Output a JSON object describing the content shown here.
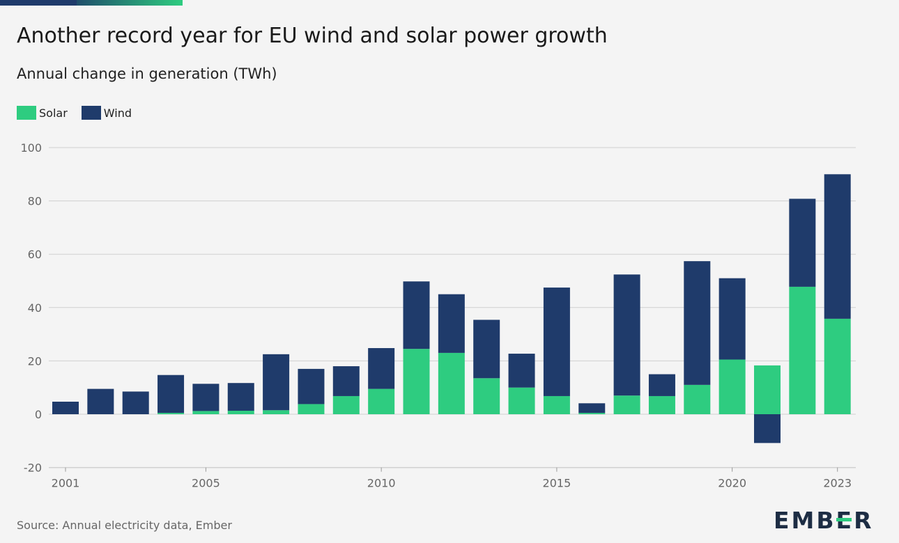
{
  "header": {
    "title": "Another record year for EU wind and solar power growth",
    "subtitle": "Annual change in generation (TWh)"
  },
  "footer": {
    "source": "Source: Annual electricity data, Ember",
    "logo": "EMBER"
  },
  "colors": {
    "solar": "#2ecc80",
    "wind": "#1f3b6b",
    "grid": "#d0d0d0",
    "background": "#f4f4f4"
  },
  "chart_data": {
    "type": "bar",
    "stacked": true,
    "title": "Another record year for EU wind and solar power growth",
    "subtitle": "Annual change in generation (TWh)",
    "xlabel": "",
    "ylabel": "",
    "ylim": [
      -20,
      100
    ],
    "yticks": [
      100,
      80,
      60,
      40,
      20,
      0,
      -20
    ],
    "xtick_labels": [
      "2001",
      "2005",
      "2010",
      "2015",
      "2020",
      "2023"
    ],
    "categories": [
      "2001",
      "2002",
      "2003",
      "2004",
      "2005",
      "2006",
      "2007",
      "2008",
      "2009",
      "2010",
      "2011",
      "2012",
      "2013",
      "2014",
      "2015",
      "2016",
      "2017",
      "2018",
      "2019",
      "2020",
      "2021",
      "2022",
      "2023"
    ],
    "series": [
      {
        "name": "Solar",
        "color": "#2ecc80",
        "values": [
          0,
          0,
          0,
          0.5,
          1.2,
          1.3,
          1.5,
          3.8,
          6.8,
          9.5,
          24.5,
          23,
          13.5,
          10,
          6.8,
          0.5,
          7,
          6.8,
          11,
          20.5,
          18.3,
          47.8,
          35.8
        ]
      },
      {
        "name": "Wind",
        "color": "#1f3b6b",
        "values": [
          4.7,
          9.5,
          8.5,
          14.2,
          10.2,
          10.4,
          21,
          13.2,
          11.2,
          15.3,
          25.3,
          22,
          21.9,
          12.7,
          40.7,
          3.6,
          45.4,
          8.2,
          46.4,
          30.5,
          -10.8,
          33,
          54.2
        ]
      }
    ],
    "legend": "top-left",
    "grid": true
  }
}
